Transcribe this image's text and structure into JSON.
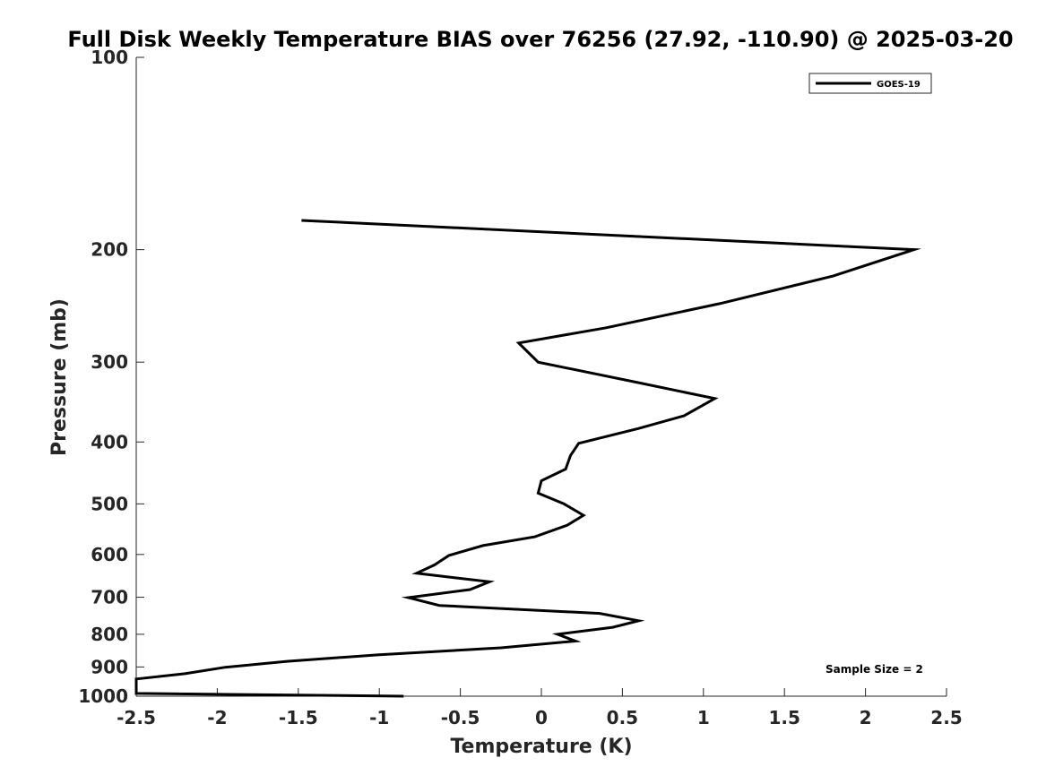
{
  "chart_data": {
    "type": "line",
    "title": "Full Disk Weekly Temperature BIAS over 76256 (27.92, -110.90) @ 2025-03-20",
    "xlabel": "Temperature (K)",
    "ylabel": "Pressure (mb)",
    "xlim": [
      -2.5,
      2.5
    ],
    "ylim": [
      100,
      1000
    ],
    "y_scale": "log",
    "y_reversed": true,
    "grid": false,
    "legend_position": "top-right",
    "x_ticks": [
      -2.5,
      -2,
      -1.5,
      -1,
      -0.5,
      0,
      0.5,
      1,
      1.5,
      2,
      2.5
    ],
    "x_tick_labels": [
      "-2.5",
      "-2",
      "-1.5",
      "-1",
      "-0.5",
      "0",
      "0.5",
      "1",
      "1.5",
      "2",
      "2.5"
    ],
    "y_ticks": [
      100,
      200,
      300,
      400,
      500,
      600,
      700,
      800,
      900,
      1000
    ],
    "y_tick_labels": [
      "100",
      "200",
      "300",
      "400",
      "500",
      "600",
      "700",
      "800",
      "900",
      "1000"
    ],
    "annotation": "Sample Size = 2",
    "series": [
      {
        "name": "GOES-19",
        "color": "#000000",
        "points": [
          {
            "x": -1.48,
            "p": 180
          },
          {
            "x": 2.3,
            "p": 200
          },
          {
            "x": 1.8,
            "p": 220
          },
          {
            "x": 1.1,
            "p": 243
          },
          {
            "x": 0.4,
            "p": 265
          },
          {
            "x": -0.14,
            "p": 280
          },
          {
            "x": -0.02,
            "p": 300
          },
          {
            "x": 0.6,
            "p": 323
          },
          {
            "x": 1.07,
            "p": 342
          },
          {
            "x": 0.88,
            "p": 364
          },
          {
            "x": 0.6,
            "p": 381
          },
          {
            "x": 0.23,
            "p": 402
          },
          {
            "x": 0.18,
            "p": 420
          },
          {
            "x": 0.15,
            "p": 441
          },
          {
            "x": 0.0,
            "p": 460
          },
          {
            "x": -0.02,
            "p": 481
          },
          {
            "x": 0.14,
            "p": 500
          },
          {
            "x": 0.26,
            "p": 521
          },
          {
            "x": 0.16,
            "p": 540
          },
          {
            "x": -0.04,
            "p": 563
          },
          {
            "x": -0.36,
            "p": 581
          },
          {
            "x": -0.57,
            "p": 602
          },
          {
            "x": -0.66,
            "p": 623
          },
          {
            "x": -0.77,
            "p": 642
          },
          {
            "x": -0.32,
            "p": 662
          },
          {
            "x": -0.44,
            "p": 681
          },
          {
            "x": -0.82,
            "p": 701
          },
          {
            "x": -0.63,
            "p": 721
          },
          {
            "x": 0.36,
            "p": 742
          },
          {
            "x": 0.6,
            "p": 762
          },
          {
            "x": 0.44,
            "p": 780
          },
          {
            "x": 0.1,
            "p": 800
          },
          {
            "x": 0.21,
            "p": 820
          },
          {
            "x": -0.25,
            "p": 840
          },
          {
            "x": -1.0,
            "p": 861
          },
          {
            "x": -1.57,
            "p": 882
          },
          {
            "x": -1.95,
            "p": 901
          },
          {
            "x": -2.2,
            "p": 922
          },
          {
            "x": -2.5,
            "p": 940
          },
          {
            "x": -2.5,
            "p": 990
          },
          {
            "x": -0.85,
            "p": 1000
          }
        ]
      }
    ]
  }
}
